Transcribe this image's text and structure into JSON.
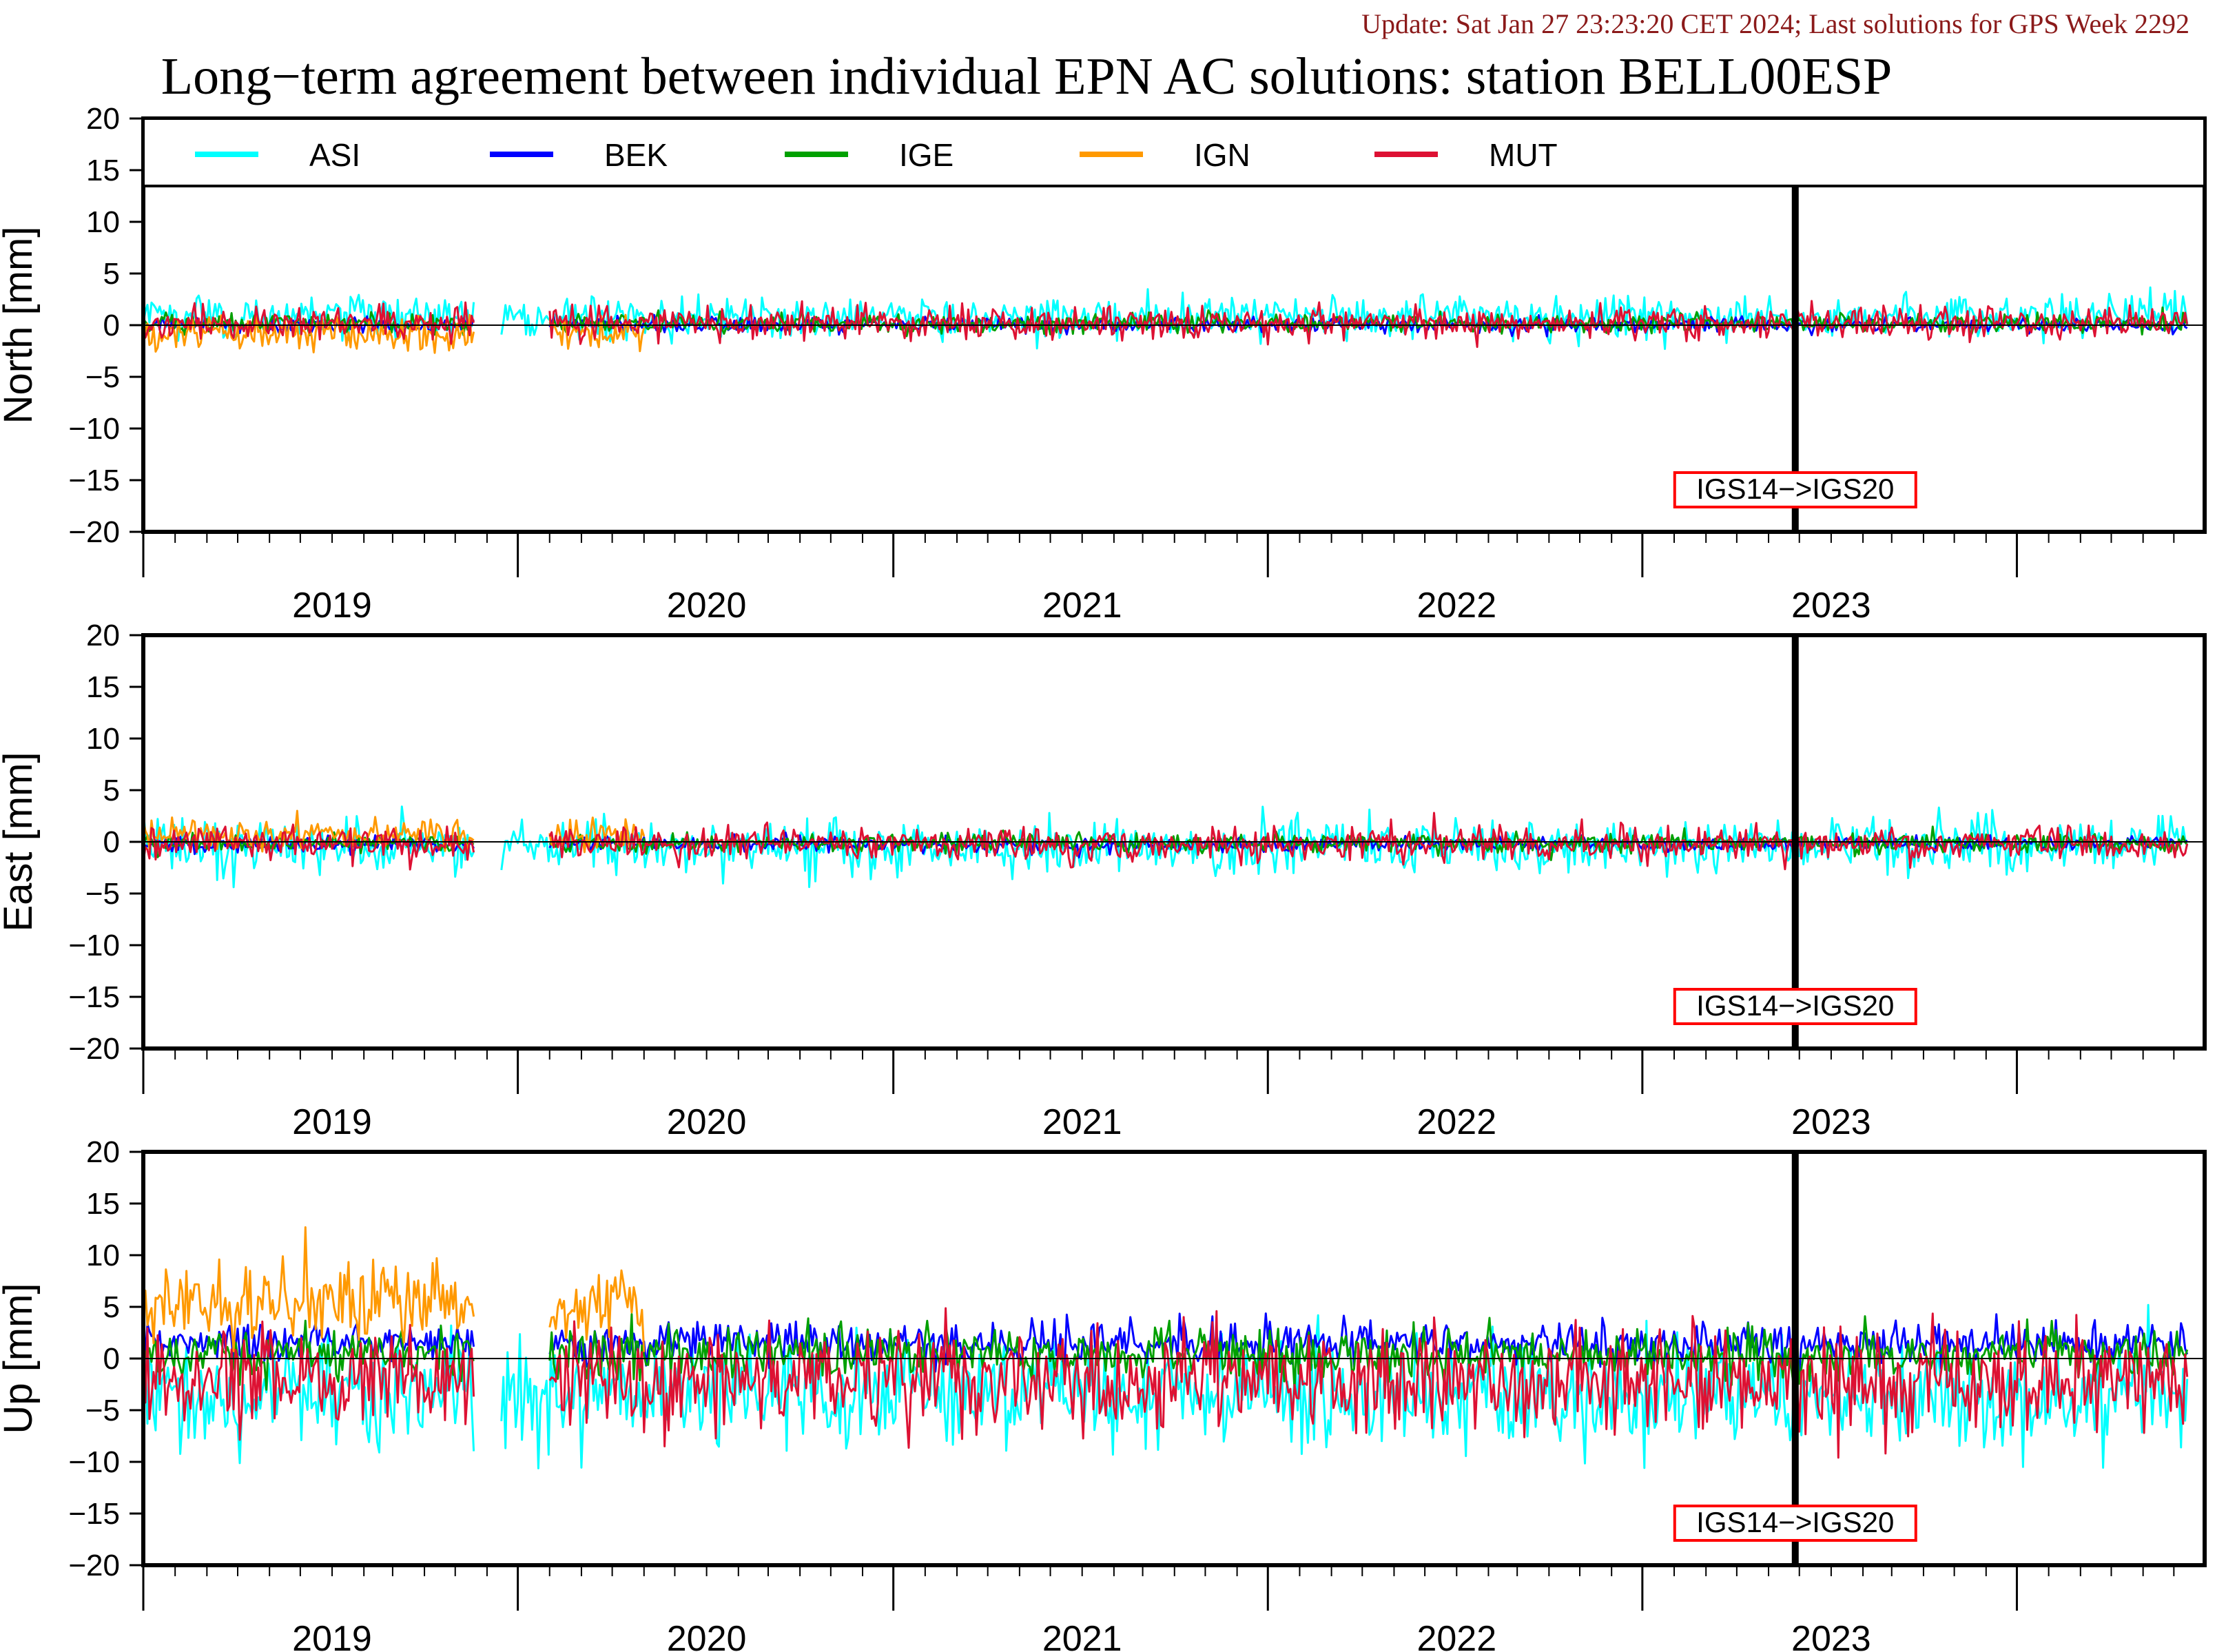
{
  "header": {
    "update_text": "Update: Sat Jan 27 23:23:20 CET 2024; Last solutions for GPS Week 2292",
    "title": "Long−term agreement between individual EPN AC solutions: station BELL00ESP"
  },
  "colors": {
    "update_text": "#8b1a1a",
    "ASI": "#00ffff",
    "BEK": "#0000ff",
    "IGE": "#00a000",
    "IGN": "#ff9900",
    "MUT": "#dd1133",
    "marker_box": "#ff0000"
  },
  "legend": [
    {
      "name": "ASI",
      "color_key": "ASI"
    },
    {
      "name": "BEK",
      "color_key": "BEK"
    },
    {
      "name": "IGE",
      "color_key": "IGE"
    },
    {
      "name": "IGN",
      "color_key": "IGN"
    },
    {
      "name": "MUT",
      "color_key": "MUT"
    }
  ],
  "marker": {
    "label": "IGS14−>IGS20",
    "date": "2022-11-27"
  },
  "chart_data": [
    {
      "type": "line",
      "ylabel": "North [mm]",
      "ylim": [
        -20,
        20
      ],
      "yticks": [
        "20",
        "15",
        "10",
        "5",
        "0",
        "−5",
        "−10",
        "−15",
        "−20"
      ],
      "xlim": [
        "2018-07-01",
        "2023-12-31"
      ],
      "xticks": [
        "2019",
        "2020",
        "2021",
        "2022",
        "2023"
      ],
      "grid": false,
      "legend_position": "top",
      "series": [
        {
          "name": "ASI",
          "mean": 0.8,
          "std": 1.0,
          "segments": [
            [
              "2018-07-01",
              "2019-05-20"
            ],
            [
              "2019-06-15",
              "2022-11-26"
            ],
            [
              "2022-11-27",
              "2023-12-15"
            ]
          ]
        },
        {
          "name": "BEK",
          "mean": 0.0,
          "std": 0.35,
          "segments": [
            [
              "2018-07-01",
              "2019-05-20"
            ],
            [
              "2019-08-01",
              "2022-11-26"
            ],
            [
              "2022-11-27",
              "2023-12-15"
            ]
          ]
        },
        {
          "name": "IGE",
          "mean": 0.2,
          "std": 0.45,
          "segments": [
            [
              "2018-07-01",
              "2019-05-20"
            ],
            [
              "2019-08-01",
              "2022-11-26"
            ],
            [
              "2022-11-27",
              "2023-12-15"
            ]
          ]
        },
        {
          "name": "IGN",
          "mean": -0.8,
          "std": 0.8,
          "segments": [
            [
              "2018-07-01",
              "2019-05-20"
            ],
            [
              "2019-08-01",
              "2019-11-01"
            ]
          ]
        },
        {
          "name": "MUT",
          "mean": 0.2,
          "std": 0.8,
          "segments": [
            [
              "2018-07-01",
              "2019-05-20"
            ],
            [
              "2019-08-01",
              "2022-11-26"
            ],
            [
              "2022-11-27",
              "2023-12-15"
            ]
          ]
        }
      ]
    },
    {
      "type": "line",
      "ylabel": "East [mm]",
      "ylim": [
        -20,
        20
      ],
      "yticks": [
        "20",
        "15",
        "10",
        "5",
        "0",
        "−5",
        "−10",
        "−15",
        "−20"
      ],
      "xlim": [
        "2018-07-01",
        "2023-12-31"
      ],
      "xticks": [
        "2019",
        "2020",
        "2021",
        "2022",
        "2023"
      ],
      "grid": false,
      "series": [
        {
          "name": "ASI",
          "mean": -0.4,
          "std": 1.3,
          "segments": [
            [
              "2018-07-01",
              "2019-05-20"
            ],
            [
              "2019-06-15",
              "2022-11-26"
            ],
            [
              "2022-11-27",
              "2023-12-15"
            ]
          ]
        },
        {
          "name": "BEK",
          "mean": -0.2,
          "std": 0.35,
          "segments": [
            [
              "2018-07-01",
              "2019-05-20"
            ],
            [
              "2019-08-01",
              "2022-11-26"
            ],
            [
              "2022-11-27",
              "2023-12-15"
            ]
          ]
        },
        {
          "name": "IGE",
          "mean": -0.1,
          "std": 0.45,
          "segments": [
            [
              "2018-07-01",
              "2019-05-20"
            ],
            [
              "2019-08-01",
              "2022-11-26"
            ],
            [
              "2022-11-27",
              "2023-12-15"
            ]
          ]
        },
        {
          "name": "IGN",
          "mean": 0.7,
          "std": 0.8,
          "segments": [
            [
              "2018-07-01",
              "2019-05-20"
            ],
            [
              "2019-08-01",
              "2019-11-01"
            ]
          ]
        },
        {
          "name": "MUT",
          "mean": -0.2,
          "std": 0.8,
          "segments": [
            [
              "2018-07-01",
              "2019-05-20"
            ],
            [
              "2019-08-01",
              "2022-11-26"
            ],
            [
              "2022-11-27",
              "2023-12-15"
            ]
          ]
        }
      ]
    },
    {
      "type": "line",
      "ylabel": "Up [mm]",
      "ylim": [
        -20,
        20
      ],
      "yticks": [
        "20",
        "15",
        "10",
        "5",
        "0",
        "−5",
        "−10",
        "−15",
        "−20"
      ],
      "xlim": [
        "2018-07-01",
        "2023-12-31"
      ],
      "xticks": [
        "2019",
        "2020",
        "2021",
        "2022",
        "2023"
      ],
      "grid": false,
      "series": [
        {
          "name": "ASI",
          "mean": -3.5,
          "std": 2.5,
          "segments": [
            [
              "2018-07-01",
              "2019-05-20"
            ],
            [
              "2019-06-15",
              "2022-11-26"
            ],
            [
              "2022-11-27",
              "2023-12-15"
            ]
          ]
        },
        {
          "name": "BEK",
          "mean": 1.5,
          "std": 1.0,
          "segments": [
            [
              "2018-07-01",
              "2019-05-20"
            ],
            [
              "2019-08-01",
              "2022-11-26"
            ],
            [
              "2022-11-27",
              "2023-12-15"
            ]
          ]
        },
        {
          "name": "IGE",
          "mean": 0.5,
          "std": 1.2,
          "segments": [
            [
              "2018-07-01",
              "2019-05-20"
            ],
            [
              "2019-08-01",
              "2022-11-26"
            ],
            [
              "2022-11-27",
              "2023-12-15"
            ]
          ]
        },
        {
          "name": "IGN",
          "mean": 5.5,
          "std": 2.0,
          "segments": [
            [
              "2018-07-01",
              "2019-05-20"
            ],
            [
              "2019-08-01",
              "2019-11-01"
            ]
          ]
        },
        {
          "name": "MUT",
          "mean": -2.0,
          "std": 2.5,
          "segments": [
            [
              "2018-07-01",
              "2019-05-20"
            ],
            [
              "2019-08-01",
              "2022-11-26"
            ],
            [
              "2022-11-27",
              "2023-12-15"
            ]
          ]
        }
      ]
    }
  ]
}
